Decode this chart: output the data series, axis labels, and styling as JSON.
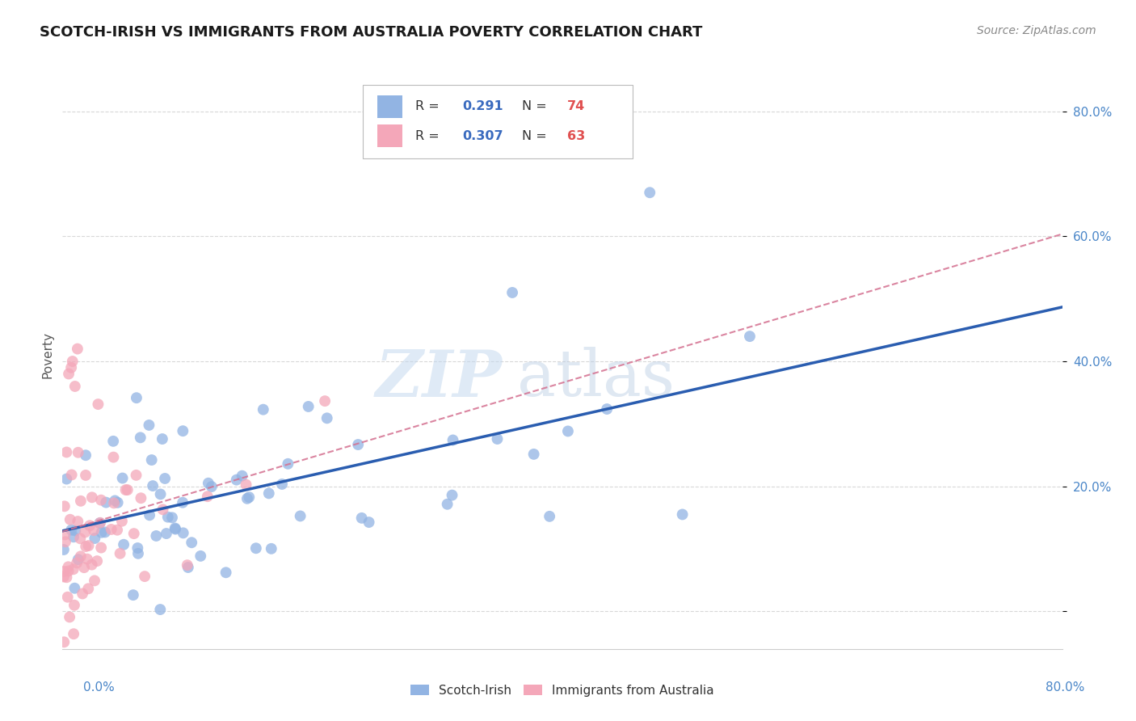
{
  "title": "SCOTCH-IRISH VS IMMIGRANTS FROM AUSTRALIA POVERTY CORRELATION CHART",
  "source": "Source: ZipAtlas.com",
  "ylabel": "Poverty",
  "ytick_vals": [
    0.0,
    0.2,
    0.4,
    0.6,
    0.8
  ],
  "xmin": 0.0,
  "xmax": 0.8,
  "ymin": -0.06,
  "ymax": 0.88,
  "r_blue": 0.291,
  "n_blue": 74,
  "r_pink": 0.307,
  "n_pink": 63,
  "legend_label_blue": "Scotch-Irish",
  "legend_label_pink": "Immigrants from Australia",
  "blue_color": "#92b4e3",
  "pink_color": "#f4a7b9",
  "blue_line_color": "#2a5db0",
  "pink_line_color": "#d47090",
  "background_color": "#ffffff",
  "grid_color": "#d8d8d8",
  "title_color": "#1a1a1a",
  "source_color": "#888888",
  "tick_color": "#4a86c8",
  "ylabel_color": "#555555",
  "scatter_size": 100,
  "scatter_alpha": 0.75,
  "blue_trend_intercept": 0.135,
  "blue_trend_slope": 0.245,
  "pink_trend_intercept": 0.085,
  "pink_trend_slope": 0.88
}
